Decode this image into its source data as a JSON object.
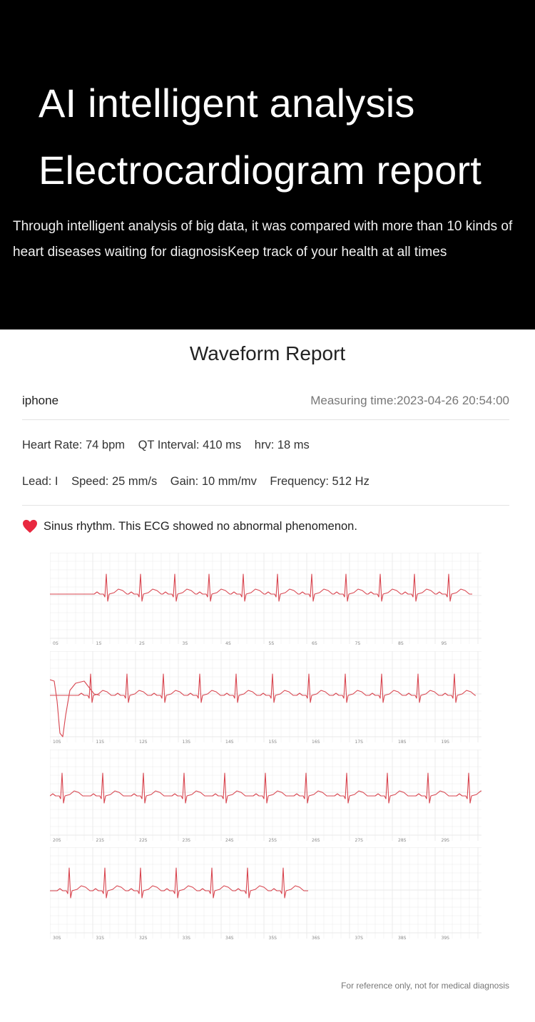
{
  "hero": {
    "title_line1": "AI intelligent analysis",
    "title_line2": "Electrocardiogram report",
    "description": "Through intelligent analysis of big data, it was compared with more than 10 kinds of heart diseases waiting for diagnosisKeep track of your health at all times"
  },
  "report": {
    "title": "Waveform Report",
    "device": "iphone",
    "measuring_time": "Measuring time:2023-04-26 20:54:00",
    "metrics1": {
      "heart_rate": "Heart Rate:   74 bpm",
      "qt_interval": "QT Interval:  410 ms",
      "hrv": "hrv:  18 ms"
    },
    "metrics2": {
      "lead": "Lead: I",
      "speed": "Speed: 25 mm/s",
      "gain": "Gain: 10 mm/mv",
      "frequency": "Frequency: 512 Hz"
    },
    "result": "Sinus rhythm. This ECG showed no abnormal phenomenon.",
    "heart_icon": "heart-icon",
    "footer": "For reference only, not for medical diagnosis"
  },
  "ecg": {
    "trace_color": "#d8454f",
    "grid_color": "#e9e9e9",
    "strips": [
      {
        "ticks": [
          "0S",
          "1S",
          "2S",
          "3S",
          "4S",
          "5S",
          "6S",
          "7S",
          "8S",
          "9S"
        ]
      },
      {
        "ticks": [
          "10S",
          "11S",
          "12S",
          "13S",
          "14S",
          "15S",
          "16S",
          "17S",
          "18S",
          "19S"
        ]
      },
      {
        "ticks": [
          "20S",
          "21S",
          "22S",
          "23S",
          "24S",
          "25S",
          "26S",
          "27S",
          "28S",
          "29S"
        ]
      },
      {
        "ticks": [
          "30S",
          "31S",
          "32S",
          "33S",
          "34S",
          "35S",
          "36S",
          "37S",
          "38S",
          "39S"
        ]
      }
    ]
  }
}
